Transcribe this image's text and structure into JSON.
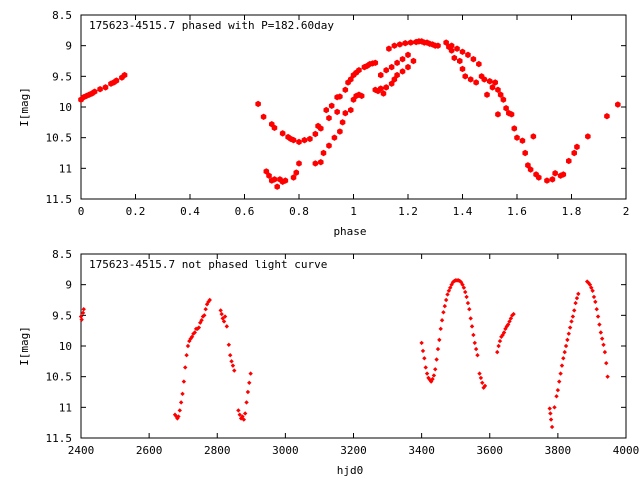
{
  "chart_data": [
    {
      "type": "scatter",
      "title": "175623-4515.7 phased with P=182.60day",
      "xlabel": "phase",
      "ylabel": "I[mag]",
      "xlim": [
        0,
        2
      ],
      "ylim": [
        8.5,
        11.5
      ],
      "y_inverted": true,
      "x_ticks": [
        0,
        0.2,
        0.4,
        0.6,
        0.8,
        1,
        1.2,
        1.4,
        1.6,
        1.8,
        2
      ],
      "x_tick_labels": [
        "0",
        "0.2",
        "0.4",
        "0.6",
        "0.8",
        "1",
        "1.2",
        "1.4",
        "1.6",
        "1.8",
        "2"
      ],
      "y_ticks": [
        8.5,
        9,
        9.5,
        10,
        10.5,
        11,
        11.5
      ],
      "y_tick_labels": [
        "8.5",
        "9",
        "9.5",
        "10",
        "10.5",
        "11",
        "11.5"
      ],
      "grid": false,
      "marker": "filled-hexagon",
      "color": "#ff0000",
      "points": [
        [
          0.0,
          9.88
        ],
        [
          0.01,
          9.84
        ],
        [
          0.02,
          9.82
        ],
        [
          0.03,
          9.8
        ],
        [
          0.04,
          9.78
        ],
        [
          0.05,
          9.75
        ],
        [
          0.07,
          9.71
        ],
        [
          0.09,
          9.68
        ],
        [
          0.11,
          9.62
        ],
        [
          0.12,
          9.6
        ],
        [
          0.13,
          9.57
        ],
        [
          0.15,
          9.52
        ],
        [
          0.16,
          9.48
        ],
        [
          0.65,
          9.95
        ],
        [
          0.67,
          10.16
        ],
        [
          0.68,
          11.05
        ],
        [
          0.69,
          11.12
        ],
        [
          0.7,
          11.2
        ],
        [
          0.7,
          10.28
        ],
        [
          0.71,
          11.18
        ],
        [
          0.71,
          10.34
        ],
        [
          0.72,
          11.3
        ],
        [
          0.73,
          11.18
        ],
        [
          0.74,
          11.22
        ],
        [
          0.74,
          10.43
        ],
        [
          0.75,
          11.2
        ],
        [
          0.76,
          10.49
        ],
        [
          0.77,
          10.52
        ],
        [
          0.78,
          11.15
        ],
        [
          0.78,
          10.54
        ],
        [
          0.79,
          11.07
        ],
        [
          0.8,
          10.57
        ],
        [
          0.8,
          10.92
        ],
        [
          0.82,
          10.54
        ],
        [
          0.84,
          10.52
        ],
        [
          0.86,
          10.44
        ],
        [
          0.86,
          10.92
        ],
        [
          0.87,
          10.31
        ],
        [
          0.88,
          10.9
        ],
        [
          0.88,
          10.35
        ],
        [
          0.89,
          10.75
        ],
        [
          0.9,
          10.05
        ],
        [
          0.91,
          10.18
        ],
        [
          0.91,
          10.63
        ],
        [
          0.92,
          9.98
        ],
        [
          0.93,
          10.5
        ],
        [
          0.94,
          10.08
        ],
        [
          0.94,
          9.84
        ],
        [
          0.95,
          10.4
        ],
        [
          0.95,
          9.83
        ],
        [
          0.96,
          10.25
        ],
        [
          0.97,
          9.72
        ],
        [
          0.97,
          10.1
        ],
        [
          0.98,
          9.6
        ],
        [
          0.99,
          10.05
        ],
        [
          0.99,
          9.55
        ],
        [
          1.0,
          9.88
        ],
        [
          1.0,
          9.48
        ],
        [
          1.01,
          9.82
        ],
        [
          1.01,
          9.44
        ],
        [
          1.02,
          9.8
        ],
        [
          1.02,
          9.4
        ],
        [
          1.03,
          9.82
        ],
        [
          1.04,
          9.35
        ],
        [
          1.05,
          9.33
        ],
        [
          1.06,
          9.3
        ],
        [
          1.07,
          9.29
        ],
        [
          1.08,
          9.28
        ],
        [
          1.08,
          9.72
        ],
        [
          1.09,
          9.74
        ],
        [
          1.1,
          9.7
        ],
        [
          1.1,
          9.48
        ],
        [
          1.11,
          9.78
        ],
        [
          1.12,
          9.4
        ],
        [
          1.12,
          9.68
        ],
        [
          1.13,
          9.05
        ],
        [
          1.14,
          9.35
        ],
        [
          1.14,
          9.62
        ],
        [
          1.15,
          9.0
        ],
        [
          1.15,
          9.55
        ],
        [
          1.16,
          9.28
        ],
        [
          1.16,
          9.48
        ],
        [
          1.17,
          8.98
        ],
        [
          1.18,
          9.22
        ],
        [
          1.18,
          9.42
        ],
        [
          1.19,
          8.96
        ],
        [
          1.2,
          9.15
        ],
        [
          1.2,
          9.35
        ],
        [
          1.21,
          8.95
        ],
        [
          1.22,
          9.25
        ],
        [
          1.23,
          8.94
        ],
        [
          1.24,
          8.93
        ],
        [
          1.25,
          8.93
        ],
        [
          1.26,
          8.95
        ],
        [
          1.27,
          8.95
        ],
        [
          1.28,
          8.97
        ],
        [
          1.29,
          8.98
        ],
        [
          1.3,
          9.0
        ],
        [
          1.31,
          9.0
        ],
        [
          1.34,
          8.95
        ],
        [
          1.35,
          9.02
        ],
        [
          1.36,
          9.08
        ],
        [
          1.36,
          9.0
        ],
        [
          1.37,
          9.2
        ],
        [
          1.38,
          9.05
        ],
        [
          1.39,
          9.25
        ],
        [
          1.4,
          9.1
        ],
        [
          1.4,
          9.38
        ],
        [
          1.41,
          9.5
        ],
        [
          1.42,
          9.15
        ],
        [
          1.43,
          9.55
        ],
        [
          1.44,
          9.22
        ],
        [
          1.45,
          9.6
        ],
        [
          1.46,
          9.3
        ],
        [
          1.47,
          9.5
        ],
        [
          1.48,
          9.55
        ],
        [
          1.49,
          9.8
        ],
        [
          1.5,
          9.58
        ],
        [
          1.51,
          9.68
        ],
        [
          1.52,
          9.6
        ],
        [
          1.53,
          10.12
        ],
        [
          1.53,
          9.72
        ],
        [
          1.54,
          9.8
        ],
        [
          1.55,
          9.88
        ],
        [
          1.56,
          10.02
        ],
        [
          1.57,
          10.1
        ],
        [
          1.58,
          10.12
        ],
        [
          1.59,
          10.35
        ],
        [
          1.6,
          10.5
        ],
        [
          1.62,
          10.55
        ],
        [
          1.63,
          10.75
        ],
        [
          1.64,
          10.95
        ],
        [
          1.65,
          11.02
        ],
        [
          1.66,
          10.48
        ],
        [
          1.67,
          11.1
        ],
        [
          1.68,
          11.15
        ],
        [
          1.71,
          11.2
        ],
        [
          1.73,
          11.18
        ],
        [
          1.74,
          11.08
        ],
        [
          1.76,
          11.12
        ],
        [
          1.77,
          11.1
        ],
        [
          1.79,
          10.88
        ],
        [
          1.81,
          10.75
        ],
        [
          1.82,
          10.65
        ],
        [
          1.86,
          10.48
        ],
        [
          1.93,
          10.15
        ],
        [
          1.97,
          9.96
        ]
      ]
    },
    {
      "type": "scatter",
      "title": "175623-4515.7 not phased light curve",
      "xlabel": "hjd0",
      "ylabel": "I[mag]",
      "xlim": [
        2400,
        4000
      ],
      "ylim": [
        8.5,
        11.5
      ],
      "y_inverted": true,
      "x_ticks": [
        2400,
        2600,
        2800,
        3000,
        3200,
        3400,
        3600,
        3800,
        4000
      ],
      "x_tick_labels": [
        "2400",
        "2600",
        "2800",
        "3000",
        "3200",
        "3400",
        "3600",
        "3800",
        "4000"
      ],
      "y_ticks": [
        8.5,
        9,
        9.5,
        10,
        10.5,
        11,
        11.5
      ],
      "y_tick_labels": [
        "8.5",
        "9",
        "9.5",
        "10",
        "10.5",
        "11",
        "11.5"
      ],
      "grid": false,
      "marker": "filled-diamond",
      "color": "#ff0000",
      "points": [
        [
          2400,
          9.52
        ],
        [
          2402,
          9.57
        ],
        [
          2406,
          9.46
        ],
        [
          2408,
          9.4
        ],
        [
          2676,
          11.12
        ],
        [
          2680,
          11.15
        ],
        [
          2683,
          11.18
        ],
        [
          2686,
          11.15
        ],
        [
          2690,
          11.05
        ],
        [
          2694,
          10.92
        ],
        [
          2698,
          10.78
        ],
        [
          2702,
          10.58
        ],
        [
          2706,
          10.35
        ],
        [
          2710,
          10.15
        ],
        [
          2714,
          10.0
        ],
        [
          2718,
          9.92
        ],
        [
          2722,
          9.88
        ],
        [
          2726,
          9.85
        ],
        [
          2730,
          9.8
        ],
        [
          2734,
          9.78
        ],
        [
          2738,
          9.72
        ],
        [
          2742,
          9.72
        ],
        [
          2746,
          9.7
        ],
        [
          2750,
          9.62
        ],
        [
          2754,
          9.58
        ],
        [
          2758,
          9.52
        ],
        [
          2762,
          9.5
        ],
        [
          2766,
          9.4
        ],
        [
          2770,
          9.32
        ],
        [
          2774,
          9.28
        ],
        [
          2778,
          9.25
        ],
        [
          2810,
          9.42
        ],
        [
          2813,
          9.48
        ],
        [
          2816,
          9.55
        ],
        [
          2820,
          9.6
        ],
        [
          2823,
          9.52
        ],
        [
          2828,
          9.68
        ],
        [
          2834,
          9.98
        ],
        [
          2838,
          10.15
        ],
        [
          2842,
          10.25
        ],
        [
          2846,
          10.32
        ],
        [
          2850,
          10.4
        ],
        [
          2862,
          11.05
        ],
        [
          2866,
          11.12
        ],
        [
          2870,
          11.18
        ],
        [
          2874,
          11.15
        ],
        [
          2878,
          11.2
        ],
        [
          2882,
          11.1
        ],
        [
          2886,
          10.92
        ],
        [
          2890,
          10.75
        ],
        [
          2894,
          10.6
        ],
        [
          2898,
          10.45
        ],
        [
          3400,
          9.95
        ],
        [
          3404,
          10.08
        ],
        [
          3408,
          10.2
        ],
        [
          3412,
          10.35
        ],
        [
          3416,
          10.45
        ],
        [
          3420,
          10.52
        ],
        [
          3424,
          10.55
        ],
        [
          3428,
          10.58
        ],
        [
          3432,
          10.54
        ],
        [
          3436,
          10.48
        ],
        [
          3440,
          10.38
        ],
        [
          3444,
          10.22
        ],
        [
          3448,
          10.05
        ],
        [
          3452,
          9.9
        ],
        [
          3456,
          9.72
        ],
        [
          3460,
          9.58
        ],
        [
          3464,
          9.45
        ],
        [
          3468,
          9.35
        ],
        [
          3472,
          9.25
        ],
        [
          3476,
          9.16
        ],
        [
          3480,
          9.1
        ],
        [
          3484,
          9.05
        ],
        [
          3488,
          9.0
        ],
        [
          3492,
          8.96
        ],
        [
          3496,
          8.94
        ],
        [
          3500,
          8.93
        ],
        [
          3504,
          8.93
        ],
        [
          3508,
          8.93
        ],
        [
          3512,
          8.94
        ],
        [
          3516,
          8.96
        ],
        [
          3520,
          9.0
        ],
        [
          3524,
          9.05
        ],
        [
          3528,
          9.12
        ],
        [
          3532,
          9.2
        ],
        [
          3536,
          9.3
        ],
        [
          3540,
          9.4
        ],
        [
          3544,
          9.55
        ],
        [
          3548,
          9.68
        ],
        [
          3552,
          9.82
        ],
        [
          3556,
          9.95
        ],
        [
          3560,
          10.05
        ],
        [
          3564,
          10.15
        ],
        [
          3570,
          10.45
        ],
        [
          3574,
          10.52
        ],
        [
          3578,
          10.6
        ],
        [
          3582,
          10.68
        ],
        [
          3586,
          10.65
        ],
        [
          3622,
          10.1
        ],
        [
          3626,
          10.0
        ],
        [
          3630,
          9.92
        ],
        [
          3634,
          9.85
        ],
        [
          3638,
          9.82
        ],
        [
          3642,
          9.78
        ],
        [
          3646,
          9.72
        ],
        [
          3650,
          9.68
        ],
        [
          3654,
          9.65
        ],
        [
          3658,
          9.6
        ],
        [
          3662,
          9.55
        ],
        [
          3666,
          9.5
        ],
        [
          3670,
          9.48
        ],
        [
          3776,
          11.02
        ],
        [
          3778,
          11.1
        ],
        [
          3780,
          11.2
        ],
        [
          3783,
          11.32
        ],
        [
          3790,
          11.0
        ],
        [
          3796,
          10.82
        ],
        [
          3800,
          10.72
        ],
        [
          3804,
          10.58
        ],
        [
          3808,
          10.45
        ],
        [
          3812,
          10.32
        ],
        [
          3816,
          10.2
        ],
        [
          3820,
          10.1
        ],
        [
          3824,
          10.0
        ],
        [
          3828,
          9.9
        ],
        [
          3832,
          9.8
        ],
        [
          3836,
          9.7
        ],
        [
          3840,
          9.6
        ],
        [
          3844,
          9.52
        ],
        [
          3848,
          9.42
        ],
        [
          3852,
          9.3
        ],
        [
          3856,
          9.22
        ],
        [
          3860,
          9.15
        ],
        [
          3886,
          8.95
        ],
        [
          3890,
          8.97
        ],
        [
          3894,
          9.0
        ],
        [
          3898,
          9.05
        ],
        [
          3902,
          9.1
        ],
        [
          3906,
          9.2
        ],
        [
          3910,
          9.28
        ],
        [
          3914,
          9.4
        ],
        [
          3918,
          9.52
        ],
        [
          3922,
          9.65
        ],
        [
          3926,
          9.78
        ],
        [
          3930,
          9.88
        ],
        [
          3934,
          9.98
        ],
        [
          3938,
          10.1
        ],
        [
          3942,
          10.28
        ],
        [
          3946,
          10.5
        ]
      ]
    }
  ]
}
